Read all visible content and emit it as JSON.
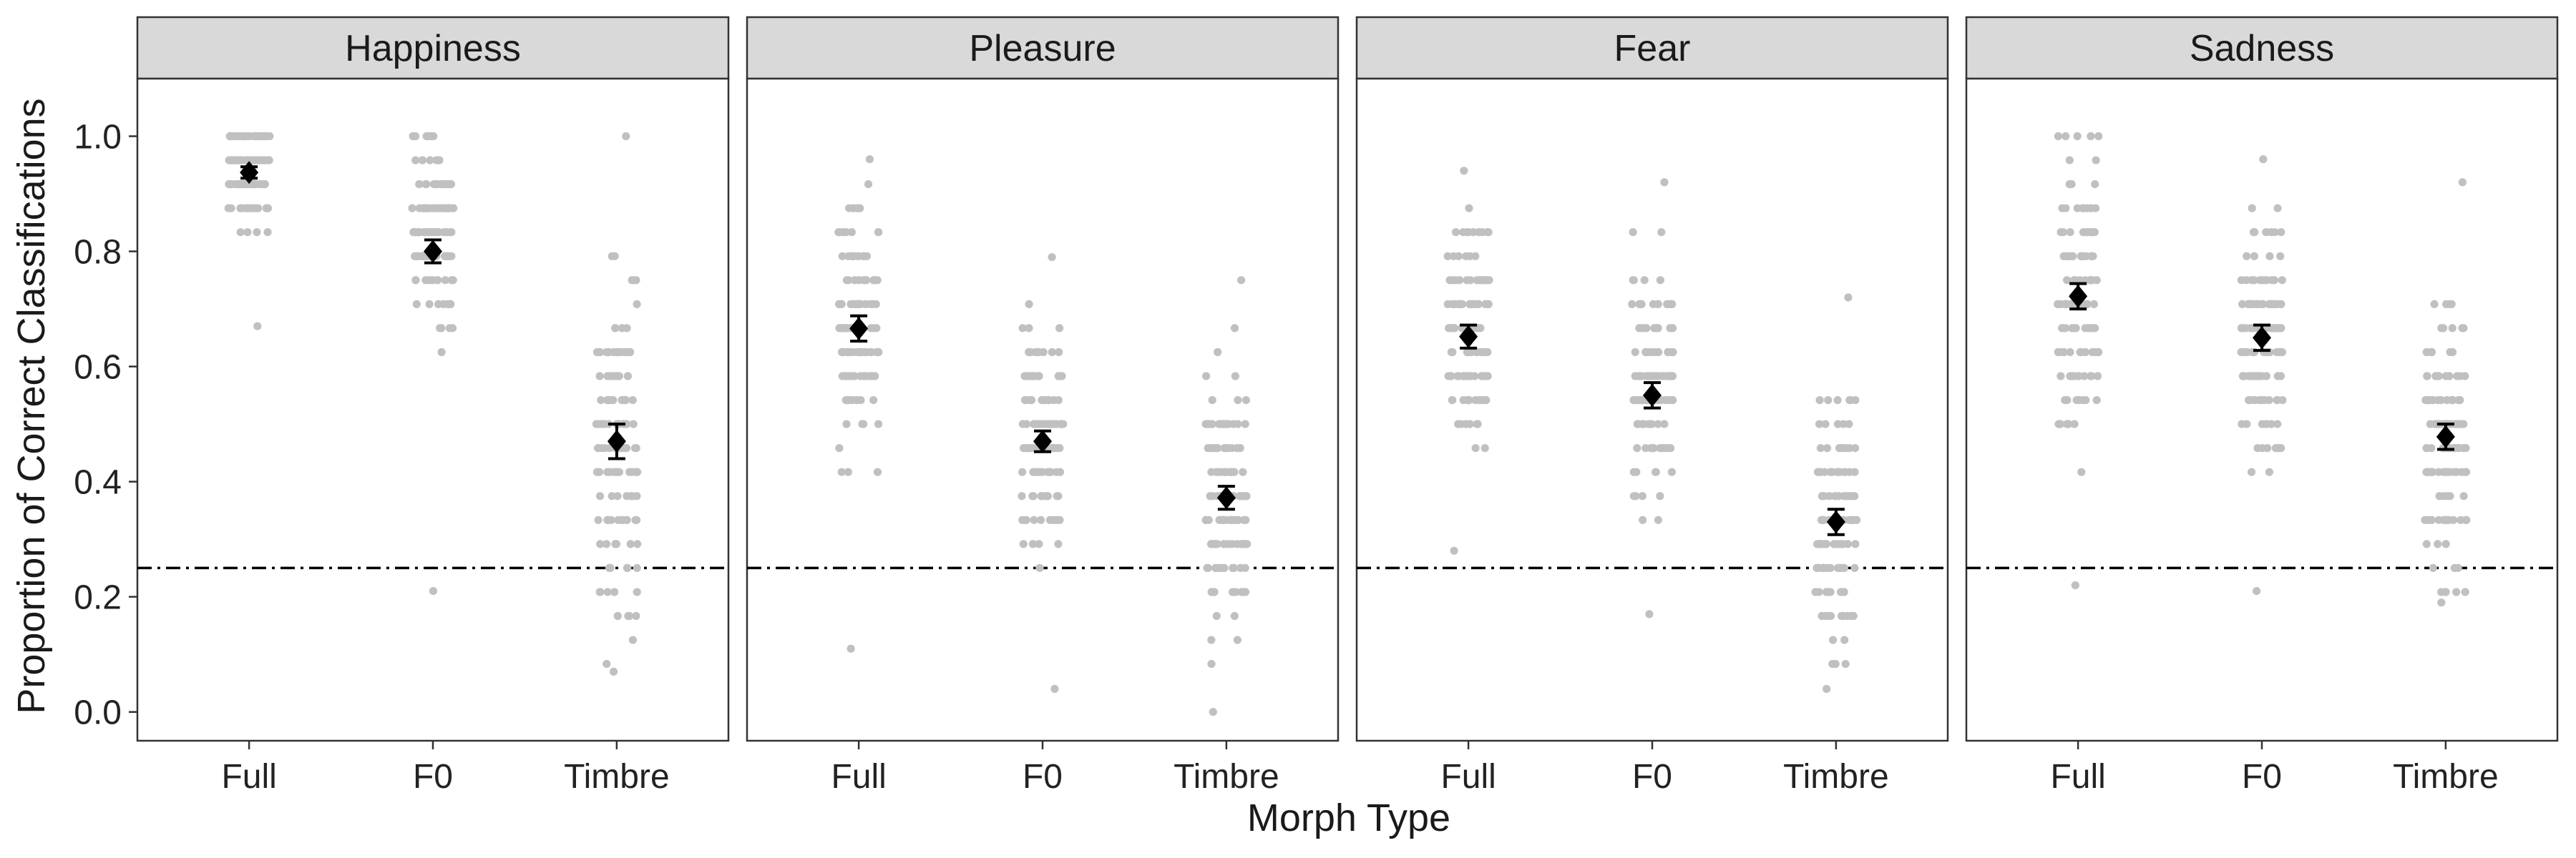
{
  "chart_data": {
    "type": "scatter",
    "xlabel": "Morph Type",
    "ylabel": "Proportion of Correct Classifications",
    "categories": [
      "Full",
      "F0",
      "Timbre"
    ],
    "ylim": [
      -0.05,
      1.1
    ],
    "yticks": [
      "0.0",
      "0.2",
      "0.4",
      "0.6",
      "0.8",
      "1.0"
    ],
    "reference_line": 0.25,
    "grid": false,
    "colors": {
      "points": "#c0c0c0",
      "means": "#000000",
      "strip": "#d9d9d9",
      "frame": "#333333"
    },
    "panels": [
      {
        "title": "Happiness",
        "groups": [
          {
            "category": "Full",
            "mean": 0.937,
            "se": 0.01,
            "range": [
              0.67,
              1.0
            ],
            "center": 0.94,
            "spread": 0.06
          },
          {
            "category": "F0",
            "mean": 0.8,
            "se": 0.02,
            "range": [
              0.21,
              1.0
            ],
            "center": 0.83,
            "spread": 0.12
          },
          {
            "category": "Timbre",
            "mean": 0.47,
            "se": 0.03,
            "range": [
              0.07,
              1.0
            ],
            "center": 0.45,
            "spread": 0.2
          }
        ]
      },
      {
        "title": "Pleasure",
        "groups": [
          {
            "category": "Full",
            "mean": 0.666,
            "se": 0.022,
            "range": [
              0.11,
              0.96
            ],
            "center": 0.67,
            "spread": 0.16
          },
          {
            "category": "F0",
            "mean": 0.47,
            "se": 0.018,
            "range": [
              0.04,
              0.79
            ],
            "center": 0.47,
            "spread": 0.13
          },
          {
            "category": "Timbre",
            "mean": 0.372,
            "se": 0.02,
            "range": [
              0.0,
              0.75
            ],
            "center": 0.38,
            "spread": 0.15
          }
        ]
      },
      {
        "title": "Fear",
        "groups": [
          {
            "category": "Full",
            "mean": 0.652,
            "se": 0.02,
            "range": [
              0.28,
              0.94
            ],
            "center": 0.66,
            "spread": 0.13
          },
          {
            "category": "F0",
            "mean": 0.55,
            "se": 0.022,
            "range": [
              0.17,
              0.92
            ],
            "center": 0.55,
            "spread": 0.15
          },
          {
            "category": "Timbre",
            "mean": 0.33,
            "se": 0.022,
            "range": [
              0.04,
              0.72
            ],
            "center": 0.32,
            "spread": 0.15
          }
        ]
      },
      {
        "title": "Sadness",
        "groups": [
          {
            "category": "Full",
            "mean": 0.722,
            "se": 0.022,
            "range": [
              0.22,
              1.0
            ],
            "center": 0.73,
            "spread": 0.17
          },
          {
            "category": "F0",
            "mean": 0.65,
            "se": 0.022,
            "range": [
              0.21,
              0.96
            ],
            "center": 0.65,
            "spread": 0.16
          },
          {
            "category": "Timbre",
            "mean": 0.478,
            "se": 0.022,
            "range": [
              0.19,
              0.92
            ],
            "center": 0.48,
            "spread": 0.15
          }
        ]
      }
    ]
  }
}
